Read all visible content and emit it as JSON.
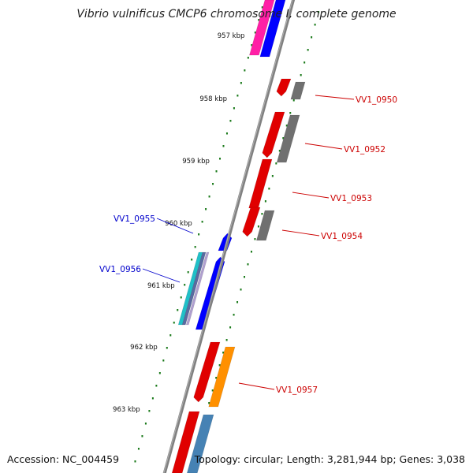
{
  "title": "Vibrio vulnificus CMCP6 chromosome I, complete genome",
  "footer": {
    "accession": "Accession: NC_004459",
    "summary": "Topology: circular; Length: 3,281,944 bp; Genes: 3,038"
  },
  "colors": {
    "backbone": "#808080",
    "tick": "#1a7a1a",
    "plus_label": "#cc0000",
    "minus_label": "#0000cc"
  },
  "ticks": [
    "957 kbp",
    "958 kbp",
    "959 kbp",
    "960 kbp",
    "961 kbp",
    "962 kbp",
    "963 kbp"
  ],
  "gene_labels": [
    {
      "text": "VV1_0950",
      "strand": "plus"
    },
    {
      "text": "VV1_0952",
      "strand": "plus"
    },
    {
      "text": "VV1_0953",
      "strand": "plus"
    },
    {
      "text": "VV1_0954",
      "strand": "plus"
    },
    {
      "text": "VV1_0955",
      "strand": "minus"
    },
    {
      "text": "VV1_0956",
      "strand": "minus"
    },
    {
      "text": "VV1_0957",
      "strand": "plus"
    }
  ]
}
